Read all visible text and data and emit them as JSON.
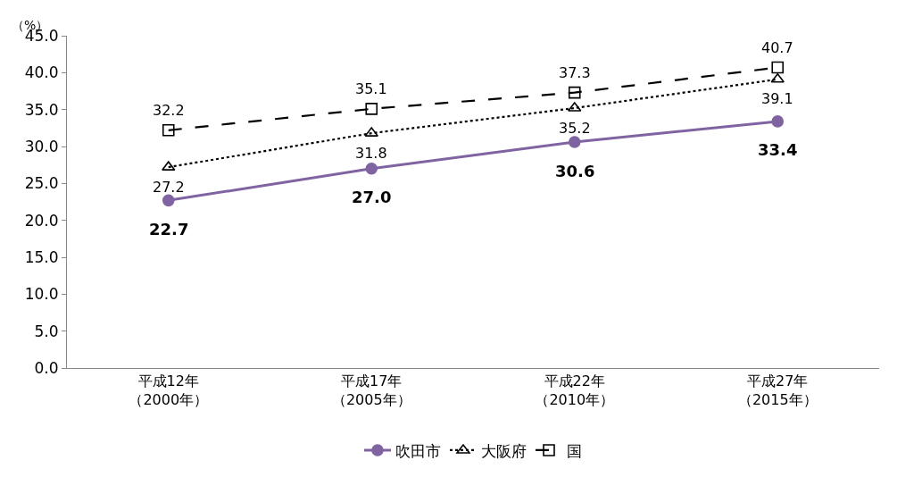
{
  "chart_data": {
    "type": "line",
    "ylabel": "（%）",
    "categories": [
      "平成12年（2000年）",
      "平成17年（2005年）",
      "平成22年（2010年）",
      "平成27年（2015年）"
    ],
    "series": [
      {
        "name": "吹田市",
        "color": "#8064a2",
        "marker": "circle",
        "line_style": "solid",
        "values": [
          22.7,
          27.0,
          30.6,
          33.4
        ],
        "value_labels": [
          "22.7",
          "27.0",
          "30.6",
          "33.4"
        ]
      },
      {
        "name": "大阪府",
        "color": "#000000",
        "marker": "triangle",
        "line_style": "dotted",
        "values": [
          27.2,
          31.8,
          35.2,
          39.1
        ],
        "value_labels": [
          "27.2",
          "31.8",
          "35.2",
          "39.1"
        ]
      },
      {
        "name": "国",
        "color": "#000000",
        "marker": "square",
        "line_style": "dashed",
        "values": [
          32.2,
          35.1,
          37.3,
          40.7
        ],
        "value_labels": [
          "32.2",
          "35.1",
          "37.3",
          "40.7"
        ]
      }
    ],
    "ylim": [
      0,
      45
    ],
    "yticks": [
      {
        "value": 0,
        "label": "0.0"
      },
      {
        "value": 5,
        "label": "5.0"
      },
      {
        "value": 10,
        "label": "10.0"
      },
      {
        "value": 15,
        "label": "15.0"
      },
      {
        "value": 20,
        "label": "20.0"
      },
      {
        "value": 25,
        "label": "25.0"
      },
      {
        "value": 30,
        "label": "30.0"
      },
      {
        "value": 35,
        "label": "35.0"
      },
      {
        "value": 40,
        "label": "40.0"
      },
      {
        "value": 45,
        "label": "45.0"
      }
    ],
    "legend": "bottom"
  }
}
